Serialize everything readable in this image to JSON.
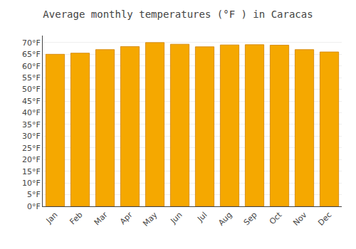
{
  "chart_data": {
    "type": "bar",
    "title": "Average monthly temperatures (°F ) in Caracas",
    "categories": [
      "Jan",
      "Feb",
      "Mar",
      "Apr",
      "May",
      "Jun",
      "Jul",
      "Aug",
      "Sep",
      "Oct",
      "Nov",
      "Dec"
    ],
    "values": [
      65.0,
      65.5,
      67.0,
      68.3,
      70.0,
      69.3,
      68.2,
      69.0,
      69.1,
      68.9,
      67.0,
      66.0
    ],
    "color": "#F5A800",
    "ylim": [
      0,
      73
    ],
    "yticks": [
      {
        "value": 0,
        "label": "0°F"
      },
      {
        "value": 5,
        "label": "5°F"
      },
      {
        "value": 10,
        "label": "10°F"
      },
      {
        "value": 15,
        "label": "15°F"
      },
      {
        "value": 20,
        "label": "20°F"
      },
      {
        "value": 25,
        "label": "25°F"
      },
      {
        "value": 30,
        "label": "30°F"
      },
      {
        "value": 35,
        "label": "35°F"
      },
      {
        "value": 40,
        "label": "40°F"
      },
      {
        "value": 45,
        "label": "45°F"
      },
      {
        "value": 50,
        "label": "50°F"
      },
      {
        "value": 55,
        "label": "55°F"
      },
      {
        "value": 60,
        "label": "60°F"
      },
      {
        "value": 65,
        "label": "65°F"
      },
      {
        "value": 70,
        "label": "70°F"
      }
    ],
    "grid": true
  }
}
